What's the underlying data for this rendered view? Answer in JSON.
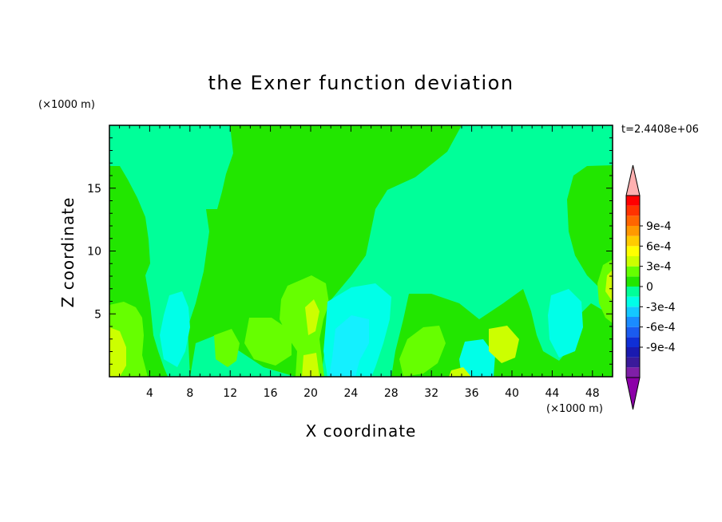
{
  "chart_data": {
    "type": "heatmap",
    "title": "the Exner function deviation",
    "xlabel": "X coordinate",
    "ylabel": "Z coordinate",
    "x_unit": "(×1000 m)",
    "z_unit": "(×1000 m)",
    "time_label": "t=2.4408e+06",
    "xlim": [
      0,
      50
    ],
    "ylim": [
      0,
      20
    ],
    "x_ticks": [
      4,
      8,
      12,
      16,
      20,
      24,
      28,
      32,
      36,
      40,
      44,
      48
    ],
    "y_ticks": [
      5,
      10,
      15
    ],
    "x_tick_labels": [
      "4",
      "8",
      "12",
      "16",
      "20",
      "24",
      "28",
      "32",
      "36",
      "40",
      "44",
      "48"
    ],
    "y_tick_labels": [
      "5",
      "10",
      "15"
    ],
    "colorbar": {
      "levels": [
        -0.0009,
        -0.0006,
        -0.0003,
        0,
        0.0003,
        0.0006,
        0.0009
      ],
      "level_labels": [
        "-9e-4",
        "-6e-4",
        "-3e-4",
        "0",
        "3e-4",
        "6e-4",
        "9e-4"
      ],
      "colors_low_to_high": [
        "#7f1fa7",
        "#3a1a9a",
        "#1a1ab0",
        "#0f2fd6",
        "#1a5cf0",
        "#1a8cff",
        "#14c8ff",
        "#00ffe8",
        "#00ff99",
        "#22e600",
        "#66ff00",
        "#ccff00",
        "#ffff00",
        "#ffcc00",
        "#ff9900",
        "#ff6600",
        "#ff3300",
        "#ff0000"
      ],
      "over_color": "#ffb0b0",
      "under_color": "#8c00a8"
    },
    "field_classes": {
      "teal": "#00ff99",
      "green": "#22e600",
      "lightgreen": "#66ff00",
      "yellowgreen": "#ccff00",
      "cyan": "#00ffe8",
      "lightcyan": "#14f0ff"
    }
  }
}
